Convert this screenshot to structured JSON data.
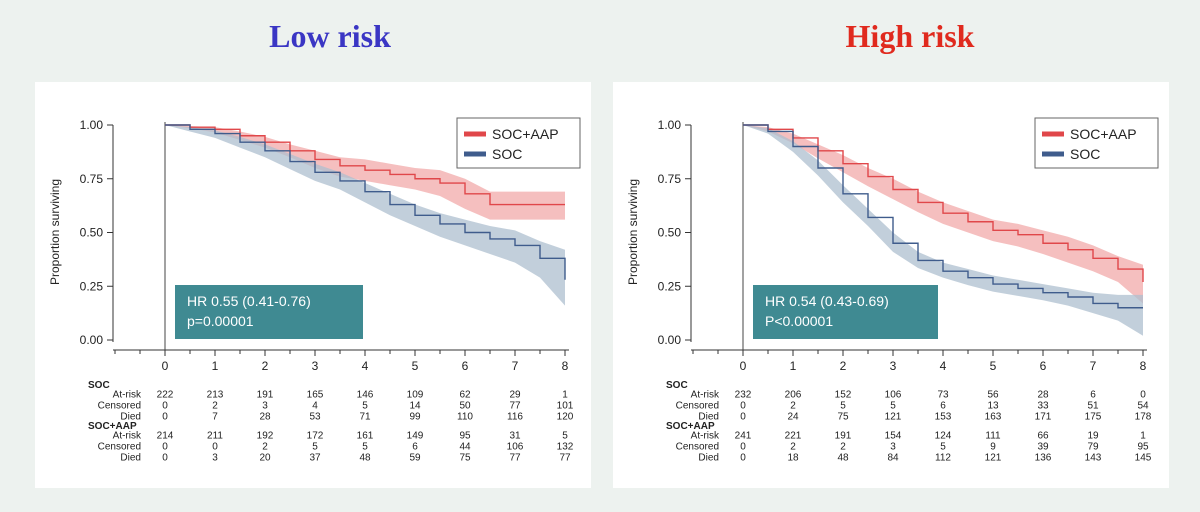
{
  "titles": {
    "low": "Low risk",
    "high": "High risk"
  },
  "chart_data": [
    {
      "type": "line",
      "title": "Low risk",
      "ylabel": "Proportion surviving",
      "xlim": [
        0,
        8
      ],
      "ylim": [
        0,
        1
      ],
      "xticks": [
        "0",
        "1",
        "2",
        "3",
        "4",
        "5",
        "6",
        "7",
        "8"
      ],
      "yticks": [
        "0.00",
        "0.25",
        "0.50",
        "0.75",
        "1.00"
      ],
      "legend": {
        "position": "top-right",
        "entries": [
          "SOC+AAP",
          "SOC"
        ]
      },
      "annotation": {
        "line1": "HR 0.55 (0.41-0.76)",
        "line2": "p=0.00001"
      },
      "series": [
        {
          "name": "SOC+AAP",
          "color": "#e0474a",
          "band_color": "#f2a9a9",
          "x": [
            0,
            0.5,
            1,
            1.5,
            2,
            2.5,
            3,
            3.5,
            4,
            4.5,
            5,
            5.5,
            6,
            6.5,
            7,
            7.5,
            8
          ],
          "y": [
            1.0,
            0.99,
            0.98,
            0.95,
            0.92,
            0.88,
            0.84,
            0.81,
            0.79,
            0.77,
            0.75,
            0.73,
            0.68,
            0.63,
            0.63,
            0.63,
            0.63
          ],
          "lower": [
            1.0,
            0.985,
            0.965,
            0.93,
            0.895,
            0.85,
            0.8,
            0.76,
            0.74,
            0.72,
            0.7,
            0.67,
            0.61,
            0.56,
            0.56,
            0.56,
            0.56
          ],
          "upper": [
            1.0,
            0.995,
            0.99,
            0.97,
            0.945,
            0.91,
            0.88,
            0.85,
            0.84,
            0.82,
            0.8,
            0.79,
            0.75,
            0.69,
            0.69,
            0.69,
            0.69
          ]
        },
        {
          "name": "SOC",
          "color": "#3f5c8c",
          "band_color": "#aebfcf",
          "x": [
            0,
            0.5,
            1,
            1.5,
            2,
            2.5,
            3,
            3.5,
            4,
            4.5,
            5,
            5.5,
            6,
            6.5,
            7,
            7.5,
            8
          ],
          "y": [
            1.0,
            0.98,
            0.96,
            0.92,
            0.88,
            0.83,
            0.78,
            0.74,
            0.69,
            0.63,
            0.58,
            0.54,
            0.5,
            0.47,
            0.44,
            0.38,
            0.28
          ],
          "lower": [
            1.0,
            0.97,
            0.94,
            0.895,
            0.85,
            0.795,
            0.74,
            0.7,
            0.64,
            0.58,
            0.53,
            0.48,
            0.44,
            0.4,
            0.36,
            0.29,
            0.16
          ],
          "upper": [
            1.0,
            0.99,
            0.975,
            0.945,
            0.91,
            0.865,
            0.82,
            0.78,
            0.73,
            0.68,
            0.63,
            0.59,
            0.56,
            0.53,
            0.51,
            0.46,
            0.42
          ]
        }
      ],
      "risk_table": {
        "groups": [
          {
            "name": "SOC",
            "rows": [
              {
                "label": "At-risk",
                "values": [
                  "222",
                  "213",
                  "191",
                  "165",
                  "146",
                  "109",
                  "62",
                  "29",
                  "1"
                ]
              },
              {
                "label": "Censored",
                "values": [
                  "0",
                  "2",
                  "3",
                  "4",
                  "5",
                  "14",
                  "50",
                  "77",
                  "101"
                ]
              },
              {
                "label": "Died",
                "values": [
                  "0",
                  "7",
                  "28",
                  "53",
                  "71",
                  "99",
                  "110",
                  "116",
                  "120"
                ]
              }
            ]
          },
          {
            "name": "SOC+AAP",
            "rows": [
              {
                "label": "At-risk",
                "values": [
                  "214",
                  "211",
                  "192",
                  "172",
                  "161",
                  "149",
                  "95",
                  "31",
                  "5"
                ]
              },
              {
                "label": "Censored",
                "values": [
                  "0",
                  "0",
                  "2",
                  "5",
                  "5",
                  "6",
                  "44",
                  "106",
                  "132"
                ]
              },
              {
                "label": "Died",
                "values": [
                  "0",
                  "3",
                  "20",
                  "37",
                  "48",
                  "59",
                  "75",
                  "77",
                  "77"
                ]
              }
            ]
          }
        ]
      }
    },
    {
      "type": "line",
      "title": "High risk",
      "ylabel": "Proportion surviving",
      "xlim": [
        0,
        8
      ],
      "ylim": [
        0,
        1
      ],
      "xticks": [
        "0",
        "1",
        "2",
        "3",
        "4",
        "5",
        "6",
        "7",
        "8"
      ],
      "yticks": [
        "0.00",
        "0.25",
        "0.50",
        "0.75",
        "1.00"
      ],
      "legend": {
        "position": "top-right",
        "entries": [
          "SOC+AAP",
          "SOC"
        ]
      },
      "annotation": {
        "line1": "HR 0.54 (0.43-0.69)",
        "line2": "P<0.00001"
      },
      "series": [
        {
          "name": "SOC+AAP",
          "color": "#e0474a",
          "band_color": "#f2a9a9",
          "x": [
            0,
            0.5,
            1,
            1.5,
            2,
            2.5,
            3,
            3.5,
            4,
            4.5,
            5,
            5.5,
            6,
            6.5,
            7,
            7.5,
            8
          ],
          "y": [
            1.0,
            0.98,
            0.94,
            0.88,
            0.82,
            0.76,
            0.7,
            0.64,
            0.59,
            0.55,
            0.51,
            0.49,
            0.45,
            0.42,
            0.38,
            0.33,
            0.27
          ],
          "lower": [
            1.0,
            0.97,
            0.915,
            0.845,
            0.78,
            0.715,
            0.655,
            0.595,
            0.54,
            0.5,
            0.46,
            0.435,
            0.4,
            0.36,
            0.32,
            0.27,
            0.17
          ],
          "upper": [
            1.0,
            0.99,
            0.96,
            0.91,
            0.86,
            0.8,
            0.75,
            0.69,
            0.64,
            0.6,
            0.56,
            0.54,
            0.51,
            0.48,
            0.44,
            0.39,
            0.35
          ]
        },
        {
          "name": "SOC",
          "color": "#3f5c8c",
          "band_color": "#aebfcf",
          "x": [
            0,
            0.5,
            1,
            1.5,
            2,
            2.5,
            3,
            3.5,
            4,
            4.5,
            5,
            5.5,
            6,
            6.5,
            7,
            7.5,
            8
          ],
          "y": [
            1.0,
            0.97,
            0.9,
            0.8,
            0.68,
            0.57,
            0.45,
            0.37,
            0.32,
            0.29,
            0.26,
            0.24,
            0.22,
            0.2,
            0.17,
            0.15,
            0.15
          ],
          "lower": [
            1.0,
            0.96,
            0.875,
            0.765,
            0.64,
            0.53,
            0.41,
            0.335,
            0.29,
            0.255,
            0.225,
            0.205,
            0.185,
            0.16,
            0.125,
            0.09,
            0.02
          ],
          "upper": [
            1.0,
            0.985,
            0.925,
            0.835,
            0.72,
            0.61,
            0.5,
            0.41,
            0.36,
            0.33,
            0.3,
            0.28,
            0.26,
            0.24,
            0.22,
            0.21,
            0.21
          ]
        }
      ],
      "risk_table": {
        "groups": [
          {
            "name": "SOC",
            "rows": [
              {
                "label": "At-risk",
                "values": [
                  "232",
                  "206",
                  "152",
                  "106",
                  "73",
                  "56",
                  "28",
                  "6",
                  "0"
                ]
              },
              {
                "label": "Censored",
                "values": [
                  "0",
                  "2",
                  "5",
                  "5",
                  "6",
                  "13",
                  "33",
                  "51",
                  "54"
                ]
              },
              {
                "label": "Died",
                "values": [
                  "0",
                  "24",
                  "75",
                  "121",
                  "153",
                  "163",
                  "171",
                  "175",
                  "178"
                ]
              }
            ]
          },
          {
            "name": "SOC+AAP",
            "rows": [
              {
                "label": "At-risk",
                "values": [
                  "241",
                  "221",
                  "191",
                  "154",
                  "124",
                  "111",
                  "66",
                  "19",
                  "1"
                ]
              },
              {
                "label": "Censored",
                "values": [
                  "0",
                  "2",
                  "2",
                  "3",
                  "5",
                  "9",
                  "39",
                  "79",
                  "95"
                ]
              },
              {
                "label": "Died",
                "values": [
                  "0",
                  "18",
                  "48",
                  "84",
                  "112",
                  "121",
                  "136",
                  "143",
                  "145"
                ]
              }
            ]
          }
        ]
      }
    }
  ]
}
